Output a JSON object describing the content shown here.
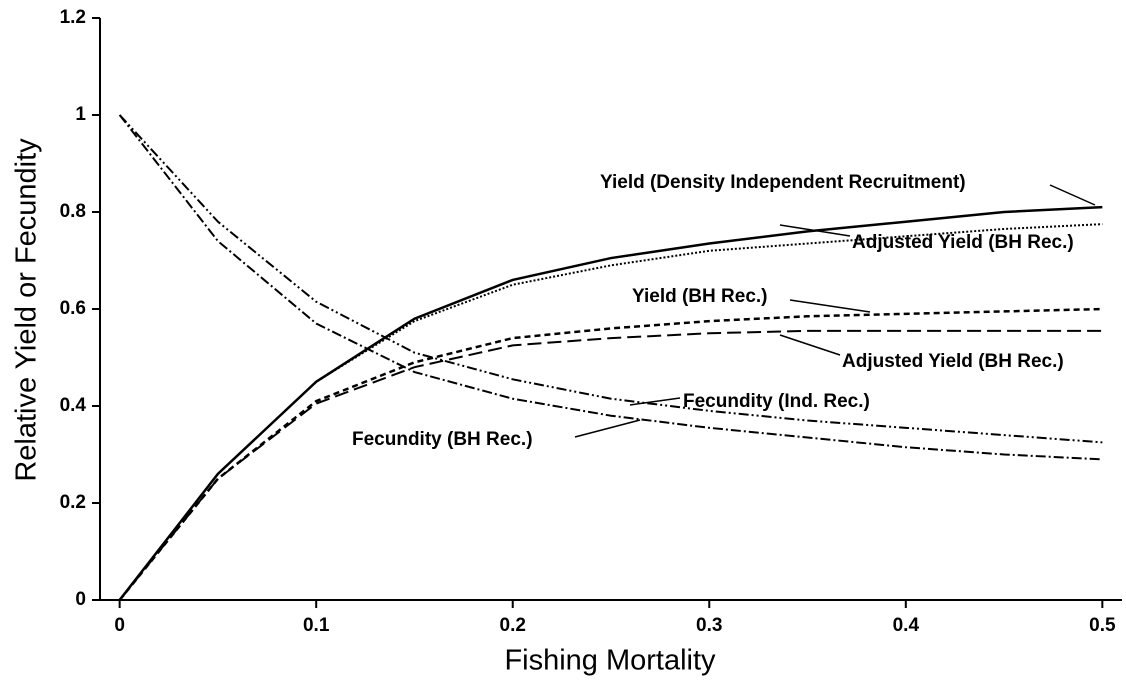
{
  "chart_data": {
    "type": "line",
    "xlabel": "Fishing Mortality",
    "ylabel": "Relative Yield or Fecundity",
    "x": [
      0,
      0.05,
      0.1,
      0.15,
      0.2,
      0.25,
      0.3,
      0.35,
      0.4,
      0.45,
      0.5
    ],
    "series": [
      {
        "name": "Yield (Density Independent Recruitment)",
        "color": "#000000",
        "values": [
          0,
          0.26,
          0.45,
          0.58,
          0.66,
          0.705,
          0.735,
          0.76,
          0.78,
          0.8,
          0.81
        ]
      },
      {
        "name": "Adjusted Yield (BH Rec.)",
        "color": "#000000",
        "values": [
          0,
          0.26,
          0.45,
          0.575,
          0.65,
          0.69,
          0.72,
          0.735,
          0.75,
          0.765,
          0.775
        ]
      },
      {
        "name": "Yield (BH Rec.)",
        "color": "#000000",
        "values": [
          0,
          0.25,
          0.41,
          0.49,
          0.54,
          0.56,
          0.575,
          0.585,
          0.59,
          0.595,
          0.6
        ]
      },
      {
        "name": "Adjusted Yield (BH Rec.)",
        "color": "#000000",
        "values": [
          0,
          0.25,
          0.405,
          0.48,
          0.525,
          0.54,
          0.55,
          0.555,
          0.555,
          0.555,
          0.555
        ]
      },
      {
        "name": "Fecundity (Ind. Rec.)",
        "color": "#000000",
        "values": [
          1,
          0.78,
          0.615,
          0.51,
          0.455,
          0.415,
          0.39,
          0.37,
          0.355,
          0.34,
          0.325
        ]
      },
      {
        "name": "Fecundity (BH Rec.)",
        "color": "#000000",
        "values": [
          1,
          0.74,
          0.57,
          0.47,
          0.415,
          0.38,
          0.355,
          0.335,
          0.315,
          0.3,
          0.29
        ]
      }
    ],
    "xlim": [
      -0.01,
      0.51
    ],
    "xticks": [
      0,
      0.1,
      0.2,
      0.3,
      0.4,
      0.5
    ],
    "ylim": [
      0,
      1.2
    ],
    "yticks": [
      0,
      0.2,
      0.4,
      0.6,
      0.8,
      1,
      1.2
    ]
  }
}
